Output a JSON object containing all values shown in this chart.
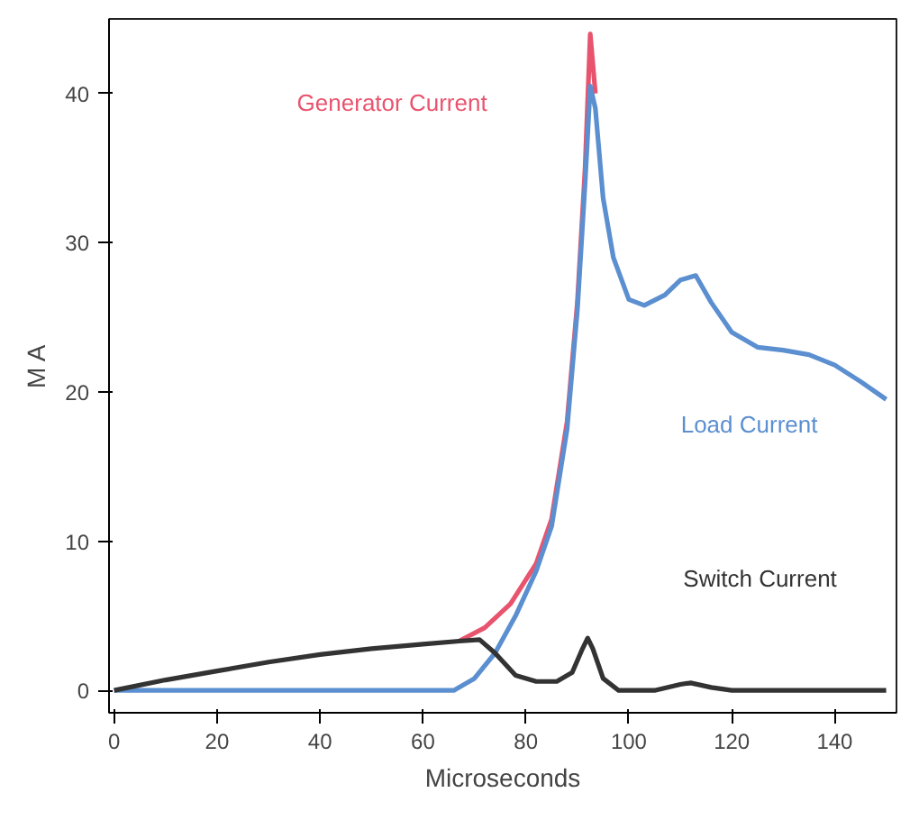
{
  "chart_data": {
    "type": "line",
    "xlabel": "Microseconds",
    "ylabel": "M A",
    "xlim": [
      -1,
      152
    ],
    "ylim": [
      -1.5,
      45
    ],
    "xticks": [
      0,
      20,
      40,
      60,
      80,
      100,
      120,
      140
    ],
    "yticks": [
      0,
      10,
      20,
      30,
      40
    ],
    "grid": false,
    "legend": false,
    "line_style": "solid",
    "marker": "none",
    "series": [
      {
        "name": "Generator Current",
        "color": "#e8546e",
        "x": [
          67,
          72,
          77,
          82,
          85,
          88,
          90,
          91.5,
          92.5,
          93.5
        ],
        "values": [
          3.3,
          4.2,
          5.8,
          8.5,
          11.5,
          18,
          26,
          35,
          44,
          40
        ]
      },
      {
        "name": "Load Current",
        "color": "#5b8fd0",
        "x": [
          0,
          66,
          70,
          74,
          78,
          82,
          85,
          88,
          90,
          91.5,
          92.5,
          93.5,
          95,
          97,
          100,
          103,
          107,
          110,
          113,
          116,
          120,
          125,
          130,
          135,
          140,
          145,
          150
        ],
        "values": [
          0,
          0,
          0.8,
          2.5,
          5,
          8,
          11,
          17.5,
          25.5,
          34,
          40.5,
          39,
          33,
          29,
          26.2,
          25.8,
          26.5,
          27.5,
          27.8,
          26,
          24,
          23,
          22.8,
          22.5,
          21.8,
          20.7,
          19.5
        ]
      },
      {
        "name": "Switch Current",
        "color": "#333333",
        "x": [
          0,
          10,
          20,
          30,
          40,
          50,
          60,
          67,
          71,
          74,
          78,
          82,
          86,
          89,
          91,
          92,
          93,
          95,
          98,
          105,
          110,
          112,
          116,
          120,
          150
        ],
        "values": [
          0,
          0.7,
          1.3,
          1.9,
          2.4,
          2.8,
          3.1,
          3.3,
          3.4,
          2.5,
          1,
          0.6,
          0.6,
          1.2,
          2.8,
          3.5,
          2.8,
          0.8,
          0,
          0,
          0.4,
          0.5,
          0.2,
          0,
          0
        ]
      }
    ]
  }
}
